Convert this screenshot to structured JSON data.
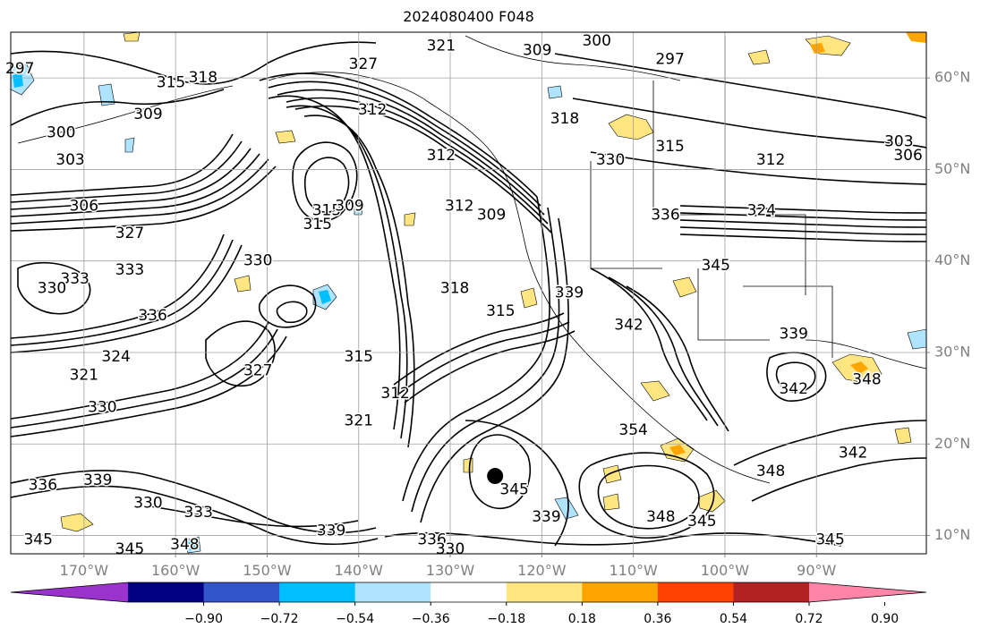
{
  "title": "2024080400 F048",
  "map": {
    "lon_range": [
      -178,
      -78
    ],
    "lat_range": [
      8,
      65
    ],
    "lon_ticks": [
      {
        "value": -170,
        "label": "170°W"
      },
      {
        "value": -160,
        "label": "160°W"
      },
      {
        "value": -150,
        "label": "150°W"
      },
      {
        "value": -140,
        "label": "140°W"
      },
      {
        "value": -130,
        "label": "130°W"
      },
      {
        "value": -120,
        "label": "120°W"
      },
      {
        "value": -110,
        "label": "110°W"
      },
      {
        "value": -100,
        "label": "100°W"
      },
      {
        "value": -90,
        "label": "90°W"
      }
    ],
    "lat_ticks": [
      {
        "value": 10,
        "label": "10°N"
      },
      {
        "value": 20,
        "label": "20°N"
      },
      {
        "value": 30,
        "label": "30°N"
      },
      {
        "value": 40,
        "label": "40°N"
      },
      {
        "value": 50,
        "label": "50°N"
      },
      {
        "value": 60,
        "label": "60°N"
      }
    ],
    "grid": true,
    "grid_color": "#a0a0a0",
    "contour_color": "#000000",
    "marker": {
      "lon": -125.1,
      "lat": 16.5,
      "color": "#000000"
    }
  },
  "contour_labels": [
    {
      "text": "297",
      "lon": -177,
      "lat": 61
    },
    {
      "text": "321",
      "lon": -131,
      "lat": 63.5
    },
    {
      "text": "309",
      "lon": -120.5,
      "lat": 63
    },
    {
      "text": "300",
      "lon": -114,
      "lat": 64
    },
    {
      "text": "297",
      "lon": -106,
      "lat": 62
    },
    {
      "text": "327",
      "lon": -139.5,
      "lat": 61.5
    },
    {
      "text": "315",
      "lon": -160.5,
      "lat": 59.5
    },
    {
      "text": "318",
      "lon": -157,
      "lat": 60
    },
    {
      "text": "309",
      "lon": -163,
      "lat": 56
    },
    {
      "text": "312",
      "lon": -138.5,
      "lat": 56.5
    },
    {
      "text": "318",
      "lon": -117.5,
      "lat": 55.5
    },
    {
      "text": "300",
      "lon": -172.5,
      "lat": 54
    },
    {
      "text": "303",
      "lon": -171.5,
      "lat": 51
    },
    {
      "text": "306",
      "lon": -170,
      "lat": 46
    },
    {
      "text": "327",
      "lon": -165,
      "lat": 43
    },
    {
      "text": "333",
      "lon": -165,
      "lat": 39
    },
    {
      "text": "333",
      "lon": -171,
      "lat": 38
    },
    {
      "text": "330",
      "lon": -173.5,
      "lat": 37
    },
    {
      "text": "336",
      "lon": -162.5,
      "lat": 34
    },
    {
      "text": "324",
      "lon": -166.5,
      "lat": 29.5
    },
    {
      "text": "321",
      "lon": -170,
      "lat": 27.5
    },
    {
      "text": "330",
      "lon": -168,
      "lat": 24
    },
    {
      "text": "330",
      "lon": -151,
      "lat": 40
    },
    {
      "text": "315",
      "lon": -143.5,
      "lat": 45.5
    },
    {
      "text": "309",
      "lon": -141,
      "lat": 46
    },
    {
      "text": "315",
      "lon": -144.5,
      "lat": 44
    },
    {
      "text": "312",
      "lon": -131,
      "lat": 51.5
    },
    {
      "text": "312",
      "lon": -129,
      "lat": 46
    },
    {
      "text": "309",
      "lon": -125.5,
      "lat": 45
    },
    {
      "text": "330",
      "lon": -112.5,
      "lat": 51
    },
    {
      "text": "315",
      "lon": -106,
      "lat": 52.5
    },
    {
      "text": "312",
      "lon": -95,
      "lat": 51
    },
    {
      "text": "303",
      "lon": -81,
      "lat": 53
    },
    {
      "text": "306",
      "lon": -80,
      "lat": 51.5
    },
    {
      "text": "324",
      "lon": -96,
      "lat": 45.5
    },
    {
      "text": "336",
      "lon": -106.5,
      "lat": 45
    },
    {
      "text": "345",
      "lon": -101,
      "lat": 39.5
    },
    {
      "text": "339",
      "lon": -117,
      "lat": 36.5
    },
    {
      "text": "342",
      "lon": -110.5,
      "lat": 33
    },
    {
      "text": "339",
      "lon": -92.5,
      "lat": 32
    },
    {
      "text": "318",
      "lon": -129.5,
      "lat": 37
    },
    {
      "text": "315",
      "lon": -124.5,
      "lat": 34.5
    },
    {
      "text": "315",
      "lon": -140,
      "lat": 29.5
    },
    {
      "text": "327",
      "lon": -151,
      "lat": 28
    },
    {
      "text": "312",
      "lon": -136,
      "lat": 25.5
    },
    {
      "text": "321",
      "lon": -140,
      "lat": 22.5
    },
    {
      "text": "342",
      "lon": -92.5,
      "lat": 26
    },
    {
      "text": "348",
      "lon": -84.5,
      "lat": 27
    },
    {
      "text": "354",
      "lon": -110,
      "lat": 21.5
    },
    {
      "text": "342",
      "lon": -86,
      "lat": 19
    },
    {
      "text": "348",
      "lon": -95,
      "lat": 17
    },
    {
      "text": "336",
      "lon": -174.5,
      "lat": 15.5
    },
    {
      "text": "339",
      "lon": -168.5,
      "lat": 16
    },
    {
      "text": "330",
      "lon": -163,
      "lat": 13.5
    },
    {
      "text": "333",
      "lon": -157.5,
      "lat": 12.5
    },
    {
      "text": "339",
      "lon": -143,
      "lat": 10.5
    },
    {
      "text": "345",
      "lon": -175,
      "lat": 9.5
    },
    {
      "text": "345",
      "lon": -165,
      "lat": 8.5
    },
    {
      "text": "348",
      "lon": -159,
      "lat": 9
    },
    {
      "text": "345",
      "lon": -123,
      "lat": 15
    },
    {
      "text": "339",
      "lon": -119.5,
      "lat": 12
    },
    {
      "text": "348",
      "lon": -107,
      "lat": 12
    },
    {
      "text": "345",
      "lon": -102.5,
      "lat": 11.5
    },
    {
      "text": "336",
      "lon": -132,
      "lat": 9.5
    },
    {
      "text": "330",
      "lon": -130,
      "lat": 8.5
    },
    {
      "text": "345",
      "lon": -88.5,
      "lat": 9.5
    }
  ],
  "colorbar": {
    "colors": [
      "#9933cc",
      "#000080",
      "#3355cc",
      "#00bfff",
      "#aee4ff",
      "#ffffff",
      "#ffe680",
      "#ffa500",
      "#ff4000",
      "#b22222",
      "#ff85a8"
    ],
    "tick_labels": [
      "−0.90",
      "−0.72",
      "−0.54",
      "−0.36",
      "−0.18",
      "0.18",
      "0.36",
      "0.54",
      "0.72",
      "0.90"
    ]
  }
}
